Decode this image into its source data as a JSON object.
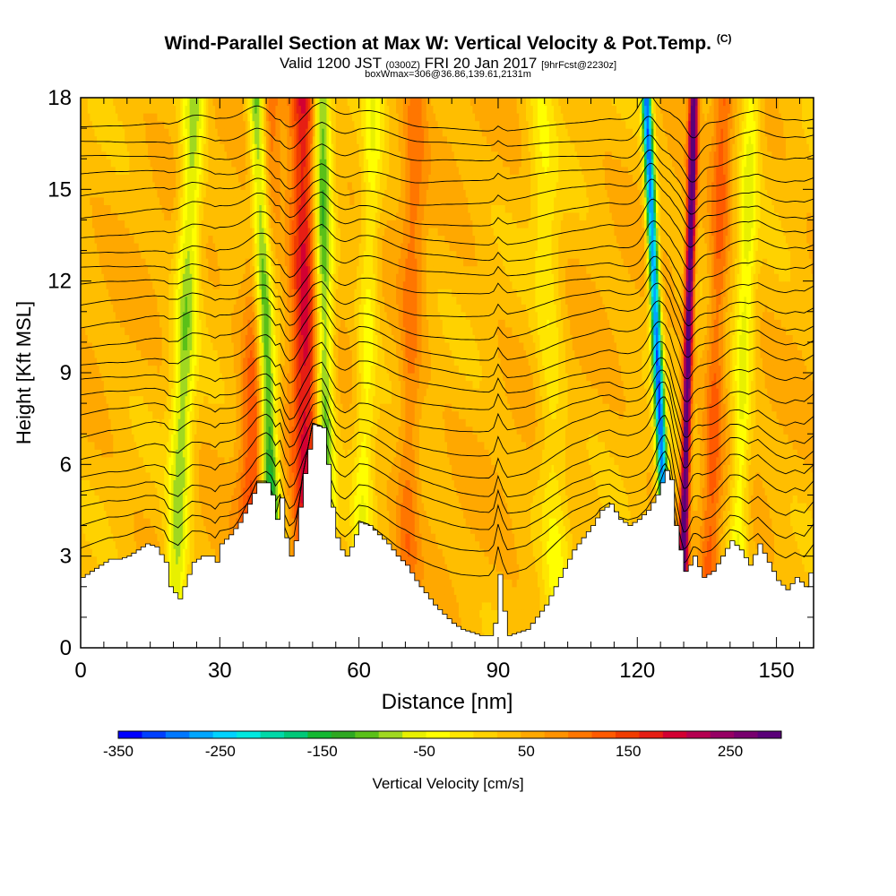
{
  "chart_data": {
    "type": "heatmap",
    "title": "Wind-Parallel Section at Max W: Vertical Velocity & Pot.Temp.",
    "title_suffix": "(C)",
    "subtitle": {
      "prefix": "Valid 1200 JST",
      "utc": "(0300Z)",
      "date": "FRI 20 Jan 2017",
      "forecast": "[9hrFcst@2230z]"
    },
    "subtitle2": "boxWmax=306@36.86,139.61,2131m",
    "xlabel": "Distance [nm]",
    "ylabel": "Height [Kft MSL]",
    "xlim": [
      0,
      158
    ],
    "ylim": [
      0,
      18
    ],
    "xticks": [
      0,
      30,
      60,
      90,
      120,
      150
    ],
    "yticks": [
      0,
      3,
      6,
      9,
      12,
      15,
      18
    ],
    "colorbar": {
      "label": "Vertical Velocity [cm/s]",
      "range": [
        -350,
        300
      ],
      "tick_labels": [
        -350,
        -250,
        -150,
        -50,
        50,
        150,
        250
      ],
      "colors": [
        "#0000ff",
        "#0040ff",
        "#0078ff",
        "#00a6ff",
        "#00d2ff",
        "#00e8e0",
        "#00d8a8",
        "#00c878",
        "#14b832",
        "#2ea822",
        "#5ac018",
        "#a0d820",
        "#e8f000",
        "#ffff00",
        "#ffe600",
        "#ffd200",
        "#ffbe00",
        "#ffa800",
        "#ff9200",
        "#ff7600",
        "#ff5a00",
        "#f03c00",
        "#e61e14",
        "#d20032",
        "#b40050",
        "#960064",
        "#78006e",
        "#5a0078"
      ]
    },
    "terrain_profile": {
      "x": [
        0,
        2,
        4,
        6,
        8,
        10,
        12,
        14,
        16,
        18,
        19,
        20,
        21,
        22,
        23,
        24,
        26,
        28,
        29,
        30,
        32,
        34,
        36,
        38,
        40,
        41,
        42,
        43,
        44,
        45,
        46,
        47,
        48,
        50,
        52,
        53,
        54,
        55,
        56,
        57,
        58,
        60,
        62,
        64,
        66,
        68,
        70,
        72,
        74,
        76,
        78,
        80,
        82,
        84,
        86,
        88,
        89,
        90,
        91,
        92,
        94,
        96,
        98,
        100,
        102,
        104,
        106,
        108,
        110,
        112,
        114,
        116,
        118,
        120,
        122,
        124,
        126,
        127,
        128,
        129,
        130,
        131,
        132,
        134,
        136,
        138,
        140,
        142,
        144,
        146,
        148,
        150,
        152,
        154,
        156,
        158
      ],
      "y": [
        2.3,
        2.5,
        2.7,
        2.9,
        2.9,
        3.0,
        3.2,
        3.4,
        3.3,
        2.8,
        2.0,
        1.8,
        1.6,
        2.0,
        2.4,
        2.8,
        3.0,
        3.0,
        2.8,
        3.4,
        3.7,
        4.1,
        4.7,
        5.4,
        5.4,
        5.0,
        4.2,
        4.9,
        3.6,
        3.0,
        3.5,
        4.6,
        5.7,
        7.3,
        7.2,
        6.0,
        4.6,
        3.6,
        3.2,
        3.0,
        3.3,
        4.1,
        4.0,
        3.7,
        3.4,
        3.0,
        2.7,
        2.2,
        1.8,
        1.4,
        1.1,
        0.8,
        0.6,
        0.5,
        0.4,
        0.4,
        0.8,
        2.4,
        1.2,
        0.4,
        0.5,
        0.6,
        1.0,
        1.4,
        2.0,
        2.6,
        3.2,
        3.6,
        4.0,
        4.5,
        4.7,
        4.2,
        4.0,
        4.2,
        4.5,
        5.0,
        5.8,
        5.5,
        4.0,
        3.2,
        2.5,
        2.7,
        3.0,
        2.3,
        2.5,
        3.0,
        3.5,
        3.2,
        2.7,
        3.4,
        2.8,
        2.2,
        1.9,
        2.3,
        2.0,
        2.9
      ]
    },
    "wave_bands": [
      {
        "x_ground": 20,
        "tilt": 0.25,
        "width": 2.4,
        "w": -120
      },
      {
        "x_ground": 36,
        "tilt": 0.22,
        "width": 3.0,
        "w": 110
      },
      {
        "x_ground": 42,
        "tilt": -0.22,
        "width": 2.0,
        "w": -220
      },
      {
        "x_ground": 49,
        "tilt": -0.06,
        "width": 3.0,
        "w": 150
      },
      {
        "x_ground": 53,
        "tilt": -0.06,
        "width": 2.0,
        "w": -160
      },
      {
        "x_ground": 60,
        "tilt": 0.18,
        "width": 2.2,
        "w": -70
      },
      {
        "x_ground": 70,
        "tilt": 0.12,
        "width": 2.4,
        "w": 60
      },
      {
        "x_ground": 103,
        "tilt": -0.2,
        "width": 3.0,
        "w": -55
      },
      {
        "x_ground": 127,
        "tilt": -0.28,
        "width": 1.1,
        "w": -330
      },
      {
        "x_ground": 129.5,
        "tilt": 0.15,
        "width": 0.9,
        "w": 290
      },
      {
        "x_ground": 135,
        "tilt": 0.2,
        "width": 2.0,
        "w": 80
      },
      {
        "x_ground": 141,
        "tilt": 0.2,
        "width": 2.0,
        "w": -90
      }
    ],
    "isentropes": {
      "count": 24,
      "base_heights": [
        3.4,
        4.0,
        4.6,
        5.2,
        5.8,
        6.4,
        7.0,
        7.6,
        8.2,
        8.8,
        9.4,
        10.0,
        10.6,
        11.2,
        11.8,
        12.4,
        13.0,
        13.6,
        14.2,
        14.8,
        15.4,
        16.0,
        16.6,
        17.2
      ]
    }
  }
}
